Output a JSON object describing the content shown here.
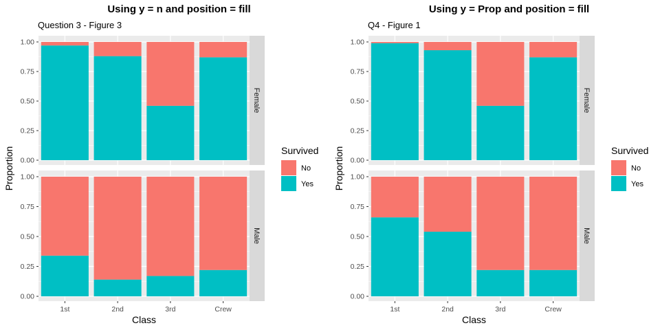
{
  "colors": {
    "no": "#F8766D",
    "yes": "#00BFC4",
    "panel": "#EBEBEB",
    "strip": "#D9D9D9",
    "grid": "#FFFFFF"
  },
  "chart_data": [
    {
      "type": "bar",
      "stacked": "fill",
      "title": "Using y = n and position = fill",
      "subtitle": "Question 3 - Figure 3",
      "xlabel": "Class",
      "ylabel": "Proportion",
      "ylim": [
        0,
        1
      ],
      "yticks": [
        "0.00",
        "0.25",
        "0.50",
        "0.75",
        "1.00"
      ],
      "categories": [
        "1st",
        "2nd",
        "3rd",
        "Crew"
      ],
      "facets": [
        {
          "label": "Female",
          "series": [
            {
              "name": "No",
              "values": [
                0.03,
                0.12,
                0.54,
                0.13
              ]
            },
            {
              "name": "Yes",
              "values": [
                0.97,
                0.88,
                0.46,
                0.87
              ]
            }
          ]
        },
        {
          "label": "Male",
          "series": [
            {
              "name": "No",
              "values": [
                0.66,
                0.86,
                0.83,
                0.78
              ]
            },
            {
              "name": "Yes",
              "values": [
                0.34,
                0.14,
                0.17,
                0.22
              ]
            }
          ]
        }
      ],
      "legend": {
        "title": "Survived",
        "items": [
          "No",
          "Yes"
        ],
        "placement": "right"
      },
      "grid": true
    },
    {
      "type": "bar",
      "stacked": "fill",
      "title": "Using y = Prop and position = fill",
      "subtitle": "Q4 - Figure 1",
      "xlabel": "Class",
      "ylabel": "Proportion",
      "ylim": [
        0,
        1
      ],
      "yticks": [
        "0.00",
        "0.25",
        "0.50",
        "0.75",
        "1.00"
      ],
      "categories": [
        "1st",
        "2nd",
        "3rd",
        "Crew"
      ],
      "facets": [
        {
          "label": "Female",
          "series": [
            {
              "name": "No",
              "values": [
                0.01,
                0.07,
                0.54,
                0.13
              ]
            },
            {
              "name": "Yes",
              "values": [
                0.99,
                0.93,
                0.46,
                0.87
              ]
            }
          ]
        },
        {
          "label": "Male",
          "series": [
            {
              "name": "No",
              "values": [
                0.34,
                0.46,
                0.78,
                0.78
              ]
            },
            {
              "name": "Yes",
              "values": [
                0.66,
                0.54,
                0.22,
                0.22
              ]
            }
          ]
        }
      ],
      "legend": {
        "title": "Survived",
        "items": [
          "No",
          "Yes"
        ],
        "placement": "right"
      },
      "grid": true
    }
  ]
}
